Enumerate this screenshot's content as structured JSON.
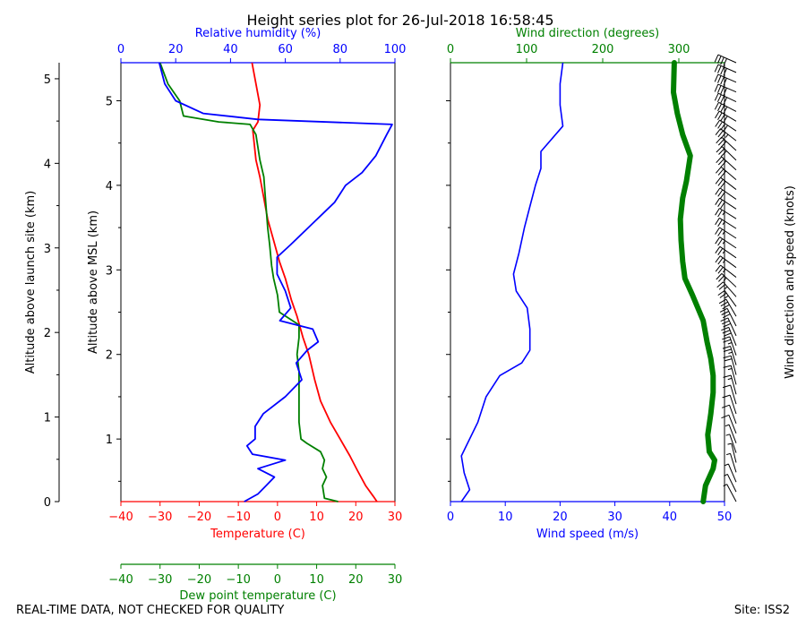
{
  "footer": {
    "left": "REAL-TIME DATA, NOT CHECKED FOR QUALITY",
    "right": "Site: ISS2"
  },
  "colors": {
    "temperature": "#ff0000",
    "dewpoint": "#008000",
    "humidity": "#0000ff",
    "wind_speed": "#0000ff",
    "wind_direction": "#008000",
    "barbs": "#000000"
  },
  "chart_data": [
    {
      "type": "line",
      "title": "Height series plot for 26-Jul-2018 16:58:45",
      "ylabel_outer": "Altitude above launch site (km)",
      "ylabel_inner": "Altitude above MSL (km)",
      "yticks_outer": [
        "0",
        "1",
        "2",
        "3",
        "4",
        "5"
      ],
      "yticks_inner": [
        "1",
        "2",
        "3",
        "4",
        "5"
      ],
      "y_msl_range": [
        0.26,
        5.45
      ],
      "launch_site_msl_km": 0.26,
      "x_axes": [
        {
          "name": "temperature",
          "label": "Temperature (C)",
          "range": [
            -40,
            30
          ],
          "ticks": [
            "−40",
            "−30",
            "−20",
            "−10",
            "0",
            "10",
            "20",
            "30"
          ],
          "position": "bottom"
        },
        {
          "name": "dewpoint",
          "label": "Dew point temperature (C)",
          "range": [
            -40,
            30
          ],
          "ticks": [
            "−40",
            "−30",
            "−20",
            "−10",
            "0",
            "10",
            "20",
            "30"
          ],
          "position": "bottom-offset"
        },
        {
          "name": "humidity",
          "label": "Relative humidity (%)",
          "range": [
            0,
            100
          ],
          "ticks": [
            "0",
            "20",
            "40",
            "60",
            "80",
            "100"
          ],
          "position": "top"
        }
      ],
      "series": [
        {
          "name": "Temperature",
          "axis": "temperature",
          "points": [
            [
              25.4,
              0.26
            ],
            [
              24.5,
              0.32
            ],
            [
              22.5,
              0.45
            ],
            [
              20.5,
              0.62
            ],
            [
              18.5,
              0.8
            ],
            [
              16.0,
              1.0
            ],
            [
              13.5,
              1.2
            ],
            [
              11.0,
              1.45
            ],
            [
              9.5,
              1.7
            ],
            [
              8.0,
              2.0
            ],
            [
              6.5,
              2.2
            ],
            [
              5.0,
              2.45
            ],
            [
              3.5,
              2.65
            ],
            [
              2.0,
              2.9
            ],
            [
              0.5,
              3.1
            ],
            [
              -1.0,
              3.35
            ],
            [
              -2.5,
              3.6
            ],
            [
              -3.5,
              3.85
            ],
            [
              -4.5,
              4.1
            ],
            [
              -5.5,
              4.3
            ],
            [
              -6.3,
              4.65
            ],
            [
              -5.0,
              4.75
            ],
            [
              -4.5,
              4.95
            ],
            [
              -5.5,
              5.2
            ],
            [
              -6.5,
              5.45
            ]
          ]
        },
        {
          "name": "Dew point temperature",
          "axis": "dewpoint",
          "points": [
            [
              15.5,
              0.26
            ],
            [
              12.0,
              0.3
            ],
            [
              11.5,
              0.45
            ],
            [
              12.5,
              0.55
            ],
            [
              11.5,
              0.65
            ],
            [
              12.0,
              0.75
            ],
            [
              11.0,
              0.85
            ],
            [
              7.5,
              0.95
            ],
            [
              6.0,
              1.0
            ],
            [
              5.5,
              1.2
            ],
            [
              5.5,
              1.5
            ],
            [
              5.5,
              1.8
            ],
            [
              5.0,
              2.0
            ],
            [
              5.5,
              2.2
            ],
            [
              5.5,
              2.35
            ],
            [
              0.5,
              2.5
            ],
            [
              0.0,
              2.7
            ],
            [
              -1.0,
              2.9
            ],
            [
              -1.5,
              3.05
            ],
            [
              -2.0,
              3.3
            ],
            [
              -2.5,
              3.5
            ],
            [
              -3.0,
              3.8
            ],
            [
              -3.5,
              4.1
            ],
            [
              -4.5,
              4.3
            ],
            [
              -5.5,
              4.6
            ],
            [
              -7.0,
              4.72
            ],
            [
              -15.0,
              4.75
            ],
            [
              -24.0,
              4.82
            ],
            [
              -25.0,
              5.0
            ],
            [
              -28.0,
              5.2
            ],
            [
              -30.0,
              5.45
            ]
          ]
        },
        {
          "name": "Relative humidity",
          "axis": "humidity",
          "points": [
            [
              45,
              0.26
            ],
            [
              50,
              0.35
            ],
            [
              53,
              0.45
            ],
            [
              56,
              0.55
            ],
            [
              50,
              0.65
            ],
            [
              60,
              0.75
            ],
            [
              48,
              0.82
            ],
            [
              46,
              0.92
            ],
            [
              49,
              1.0
            ],
            [
              49,
              1.15
            ],
            [
              52,
              1.3
            ],
            [
              60,
              1.5
            ],
            [
              66,
              1.7
            ],
            [
              64,
              1.9
            ],
            [
              68,
              2.05
            ],
            [
              72,
              2.15
            ],
            [
              70,
              2.3
            ],
            [
              58,
              2.4
            ],
            [
              62,
              2.55
            ],
            [
              60,
              2.75
            ],
            [
              57,
              2.95
            ],
            [
              57,
              3.15
            ],
            [
              62,
              3.3
            ],
            [
              70,
              3.55
            ],
            [
              78,
              3.8
            ],
            [
              82,
              4.0
            ],
            [
              88,
              4.15
            ],
            [
              93,
              4.35
            ],
            [
              97,
              4.6
            ],
            [
              99,
              4.72
            ],
            [
              50,
              4.78
            ],
            [
              30,
              4.85
            ],
            [
              20,
              5.0
            ],
            [
              16,
              5.2
            ],
            [
              14,
              5.45
            ]
          ]
        }
      ]
    },
    {
      "type": "line",
      "xlabel": "Wind speed (m/s)",
      "x2label": "Wind direction (degrees)",
      "x_range": [
        0,
        50
      ],
      "x2_range": [
        0,
        360
      ],
      "xticks": [
        "0",
        "10",
        "20",
        "30",
        "40",
        "50"
      ],
      "x2ticks": [
        "0",
        "100",
        "200",
        "300"
      ],
      "right_label": "Wind direction and speed (knots)",
      "series": [
        {
          "name": "Wind speed",
          "axis": "speed",
          "points": [
            [
              2.0,
              0.26
            ],
            [
              3.5,
              0.4
            ],
            [
              2.5,
              0.6
            ],
            [
              2.0,
              0.8
            ],
            [
              3.5,
              1.0
            ],
            [
              5.0,
              1.2
            ],
            [
              6.5,
              1.5
            ],
            [
              9.0,
              1.75
            ],
            [
              13.0,
              1.9
            ],
            [
              14.5,
              2.05
            ],
            [
              14.5,
              2.3
            ],
            [
              14.0,
              2.55
            ],
            [
              12.0,
              2.75
            ],
            [
              11.5,
              2.95
            ],
            [
              12.5,
              3.2
            ],
            [
              13.5,
              3.5
            ],
            [
              14.5,
              3.75
            ],
            [
              15.5,
              4.0
            ],
            [
              16.5,
              4.2
            ],
            [
              16.5,
              4.4
            ],
            [
              20.5,
              4.7
            ],
            [
              20.0,
              4.95
            ],
            [
              20.0,
              5.2
            ],
            [
              20.5,
              5.45
            ]
          ]
        },
        {
          "name": "Wind direction",
          "axis": "direction",
          "points": [
            [
              332,
              0.26
            ],
            [
              335,
              0.45
            ],
            [
              345,
              0.65
            ],
            [
              347,
              0.75
            ],
            [
              340,
              0.85
            ],
            [
              338,
              1.05
            ],
            [
              342,
              1.3
            ],
            [
              345,
              1.55
            ],
            [
              345,
              1.75
            ],
            [
              342,
              1.95
            ],
            [
              337,
              2.15
            ],
            [
              332,
              2.4
            ],
            [
              318,
              2.7
            ],
            [
              308,
              2.9
            ],
            [
              305,
              3.1
            ],
            [
              303,
              3.35
            ],
            [
              302,
              3.6
            ],
            [
              305,
              3.85
            ],
            [
              310,
              4.05
            ],
            [
              315,
              4.35
            ],
            [
              305,
              4.6
            ],
            [
              298,
              4.85
            ],
            [
              293,
              5.1
            ],
            [
              294,
              5.45
            ]
          ]
        }
      ]
    }
  ]
}
